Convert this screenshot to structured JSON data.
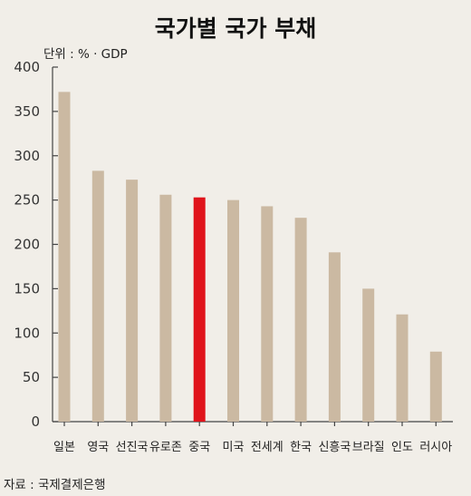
{
  "chart_data": {
    "type": "bar",
    "title": "국가별 국가 부채",
    "unit_note": "단위 : % · GDP",
    "source": "자료 : 국제결제은행",
    "categories": [
      "일본",
      "영국",
      "선진국",
      "유로존",
      "중국",
      "미국",
      "전세계",
      "한국",
      "신흥국",
      "브라질",
      "인도",
      "러시아"
    ],
    "values": [
      372,
      283,
      273,
      256,
      253,
      250,
      243,
      230,
      191,
      150,
      121,
      79
    ],
    "highlight_category": "중국",
    "ylim": [
      0,
      400
    ],
    "yticks": [
      "0",
      "50",
      "100",
      "150",
      "200",
      "250",
      "300",
      "350",
      "400"
    ],
    "grid": false,
    "legend": "none",
    "colors": {
      "background": "#f1eee8",
      "bar": "#cbb9a2",
      "highlight": "#e0141b",
      "axis": "#444444"
    }
  }
}
